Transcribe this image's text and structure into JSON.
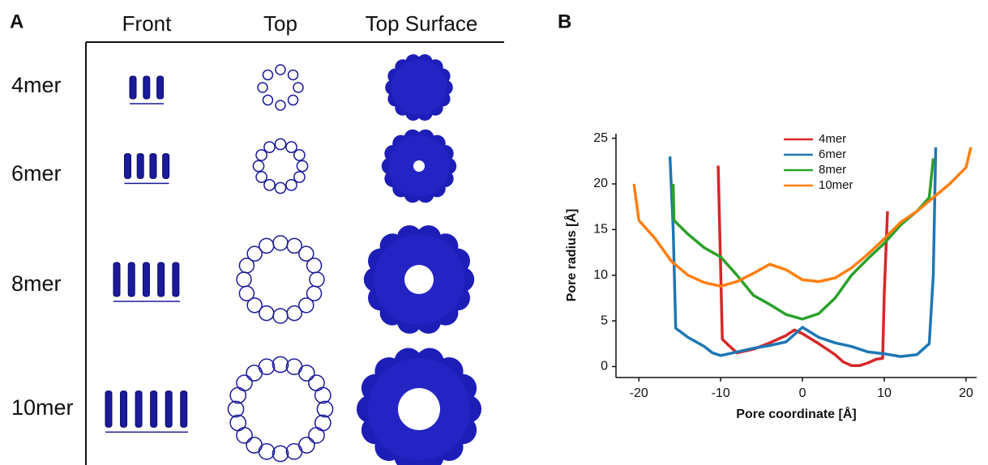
{
  "panel_a": {
    "label": "A",
    "columns": [
      "Front",
      "Top",
      "Top Surface"
    ],
    "rows": [
      "4mer",
      "6mer",
      "8mer",
      "10mer"
    ]
  },
  "chart_data": {
    "type": "line",
    "panel_label": "B",
    "xlabel": "Pore coordinate [Å]",
    "ylabel": "Pore radius [Å]",
    "xlim": [
      -22.8,
      21.3
    ],
    "ylim": [
      -1.2,
      25.5
    ],
    "xticks": [
      -20,
      -10,
      0,
      10,
      20
    ],
    "yticks": [
      0,
      5,
      10,
      15,
      20,
      25
    ],
    "series": [
      {
        "name": "4mer",
        "color": "#d62728",
        "x": [
          -10.3,
          -9.8,
          -9,
          -8,
          -6,
          -4,
          -2,
          -1,
          0,
          2,
          4,
          5,
          6,
          7,
          8,
          9,
          9.8,
          10,
          10.4
        ],
        "values": [
          22,
          3,
          2.3,
          1.5,
          1.9,
          2.6,
          3.4,
          4.0,
          3.6,
          2.5,
          1.3,
          0.5,
          0.1,
          0.1,
          0.4,
          0.8,
          0.9,
          8,
          17
        ]
      },
      {
        "name": "6mer",
        "color": "#1f77b4",
        "x": [
          -16.2,
          -15.8,
          -15.5,
          -14,
          -12,
          -11,
          -10,
          -8,
          -6,
          -4,
          -2,
          0,
          2,
          4,
          6,
          8,
          10,
          12,
          14,
          15.5,
          16,
          16.3
        ],
        "values": [
          23,
          15,
          4.2,
          3.2,
          2.2,
          1.5,
          1.2,
          1.6,
          2.0,
          2.3,
          2.7,
          4.3,
          3.2,
          2.6,
          2.2,
          1.6,
          1.4,
          1.1,
          1.3,
          2.5,
          10,
          24
        ]
      },
      {
        "name": "8mer",
        "color": "#2ca02c",
        "x": [
          -15.8,
          -15.7,
          -14,
          -12,
          -10,
          -8,
          -6,
          -4,
          -2,
          0,
          2,
          4,
          6,
          8,
          10,
          12,
          14,
          15.5,
          16
        ],
        "values": [
          20,
          16,
          14.5,
          13,
          12,
          10,
          7.8,
          6.8,
          5.7,
          5.2,
          5.8,
          7.5,
          10,
          11.8,
          13.5,
          15.5,
          17,
          18.5,
          22.8
        ]
      },
      {
        "name": "10mer",
        "color": "#ff7f0e",
        "x": [
          -20.6,
          -20,
          -18,
          -16,
          -14,
          -12,
          -10,
          -8,
          -6,
          -4,
          -2,
          0,
          2,
          4,
          6,
          8,
          10,
          12,
          14,
          16,
          18,
          20,
          20.6
        ],
        "values": [
          20,
          16,
          14,
          11.5,
          10,
          9.2,
          8.8,
          9.3,
          10.2,
          11.2,
          10.6,
          9.5,
          9.3,
          9.7,
          10.8,
          12.3,
          14,
          15.8,
          17,
          18.5,
          20,
          21.8,
          24
        ]
      }
    ]
  }
}
